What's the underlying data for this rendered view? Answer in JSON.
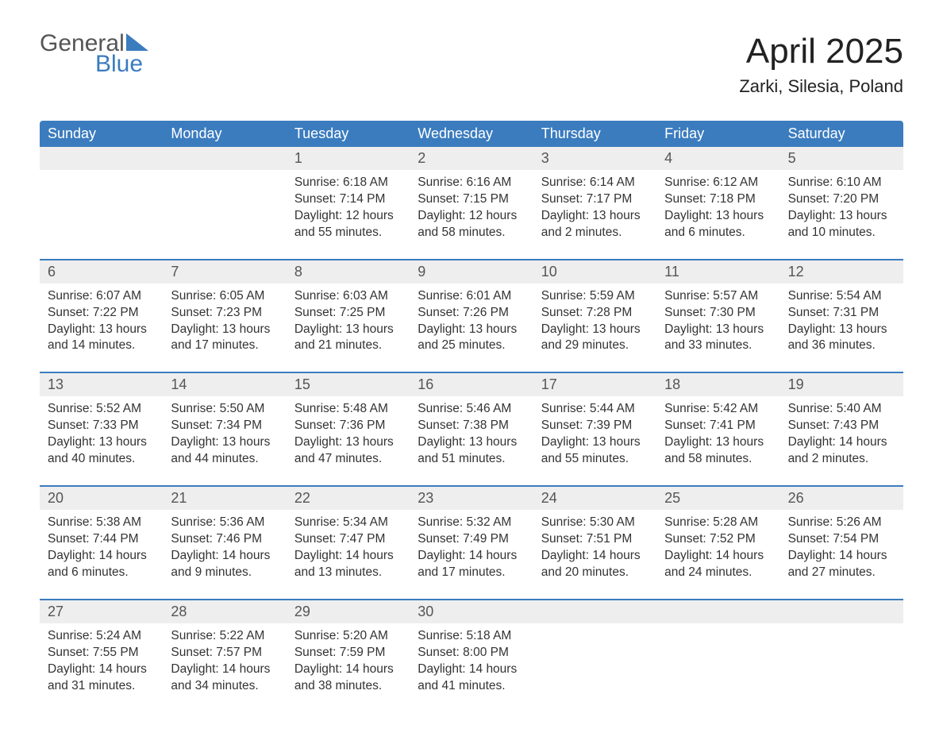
{
  "logo": {
    "word1": "General",
    "word2": "Blue"
  },
  "title": "April 2025",
  "location": "Zarki, Silesia, Poland",
  "colors": {
    "accent": "#3b7cbf",
    "header_text": "#ffffff",
    "daynum_bg": "#eeeeee",
    "body_bg": "#ffffff",
    "text": "#333333",
    "title_text": "#222222"
  },
  "typography": {
    "title_fontsize": 44,
    "location_fontsize": 22,
    "header_fontsize": 18,
    "daynum_fontsize": 18,
    "body_fontsize": 15.5
  },
  "columns": [
    "Sunday",
    "Monday",
    "Tuesday",
    "Wednesday",
    "Thursday",
    "Friday",
    "Saturday"
  ],
  "weeks": [
    [
      null,
      null,
      {
        "n": "1",
        "sunrise": "6:18 AM",
        "sunset": "7:14 PM",
        "day_h": "12",
        "day_m": "55"
      },
      {
        "n": "2",
        "sunrise": "6:16 AM",
        "sunset": "7:15 PM",
        "day_h": "12",
        "day_m": "58"
      },
      {
        "n": "3",
        "sunrise": "6:14 AM",
        "sunset": "7:17 PM",
        "day_h": "13",
        "day_m": "2"
      },
      {
        "n": "4",
        "sunrise": "6:12 AM",
        "sunset": "7:18 PM",
        "day_h": "13",
        "day_m": "6"
      },
      {
        "n": "5",
        "sunrise": "6:10 AM",
        "sunset": "7:20 PM",
        "day_h": "13",
        "day_m": "10"
      }
    ],
    [
      {
        "n": "6",
        "sunrise": "6:07 AM",
        "sunset": "7:22 PM",
        "day_h": "13",
        "day_m": "14"
      },
      {
        "n": "7",
        "sunrise": "6:05 AM",
        "sunset": "7:23 PM",
        "day_h": "13",
        "day_m": "17"
      },
      {
        "n": "8",
        "sunrise": "6:03 AM",
        "sunset": "7:25 PM",
        "day_h": "13",
        "day_m": "21"
      },
      {
        "n": "9",
        "sunrise": "6:01 AM",
        "sunset": "7:26 PM",
        "day_h": "13",
        "day_m": "25"
      },
      {
        "n": "10",
        "sunrise": "5:59 AM",
        "sunset": "7:28 PM",
        "day_h": "13",
        "day_m": "29"
      },
      {
        "n": "11",
        "sunrise": "5:57 AM",
        "sunset": "7:30 PM",
        "day_h": "13",
        "day_m": "33"
      },
      {
        "n": "12",
        "sunrise": "5:54 AM",
        "sunset": "7:31 PM",
        "day_h": "13",
        "day_m": "36"
      }
    ],
    [
      {
        "n": "13",
        "sunrise": "5:52 AM",
        "sunset": "7:33 PM",
        "day_h": "13",
        "day_m": "40"
      },
      {
        "n": "14",
        "sunrise": "5:50 AM",
        "sunset": "7:34 PM",
        "day_h": "13",
        "day_m": "44"
      },
      {
        "n": "15",
        "sunrise": "5:48 AM",
        "sunset": "7:36 PM",
        "day_h": "13",
        "day_m": "47"
      },
      {
        "n": "16",
        "sunrise": "5:46 AM",
        "sunset": "7:38 PM",
        "day_h": "13",
        "day_m": "51"
      },
      {
        "n": "17",
        "sunrise": "5:44 AM",
        "sunset": "7:39 PM",
        "day_h": "13",
        "day_m": "55"
      },
      {
        "n": "18",
        "sunrise": "5:42 AM",
        "sunset": "7:41 PM",
        "day_h": "13",
        "day_m": "58"
      },
      {
        "n": "19",
        "sunrise": "5:40 AM",
        "sunset": "7:43 PM",
        "day_h": "14",
        "day_m": "2"
      }
    ],
    [
      {
        "n": "20",
        "sunrise": "5:38 AM",
        "sunset": "7:44 PM",
        "day_h": "14",
        "day_m": "6"
      },
      {
        "n": "21",
        "sunrise": "5:36 AM",
        "sunset": "7:46 PM",
        "day_h": "14",
        "day_m": "9"
      },
      {
        "n": "22",
        "sunrise": "5:34 AM",
        "sunset": "7:47 PM",
        "day_h": "14",
        "day_m": "13"
      },
      {
        "n": "23",
        "sunrise": "5:32 AM",
        "sunset": "7:49 PM",
        "day_h": "14",
        "day_m": "17"
      },
      {
        "n": "24",
        "sunrise": "5:30 AM",
        "sunset": "7:51 PM",
        "day_h": "14",
        "day_m": "20"
      },
      {
        "n": "25",
        "sunrise": "5:28 AM",
        "sunset": "7:52 PM",
        "day_h": "14",
        "day_m": "24"
      },
      {
        "n": "26",
        "sunrise": "5:26 AM",
        "sunset": "7:54 PM",
        "day_h": "14",
        "day_m": "27"
      }
    ],
    [
      {
        "n": "27",
        "sunrise": "5:24 AM",
        "sunset": "7:55 PM",
        "day_h": "14",
        "day_m": "31"
      },
      {
        "n": "28",
        "sunrise": "5:22 AM",
        "sunset": "7:57 PM",
        "day_h": "14",
        "day_m": "34"
      },
      {
        "n": "29",
        "sunrise": "5:20 AM",
        "sunset": "7:59 PM",
        "day_h": "14",
        "day_m": "38"
      },
      {
        "n": "30",
        "sunrise": "5:18 AM",
        "sunset": "8:00 PM",
        "day_h": "14",
        "day_m": "41"
      },
      null,
      null,
      null
    ]
  ],
  "labels": {
    "sunrise": "Sunrise:",
    "sunset": "Sunset:",
    "daylight": "Daylight:",
    "hours_word": "hours",
    "and_word": "and",
    "minutes_word": "minutes."
  }
}
